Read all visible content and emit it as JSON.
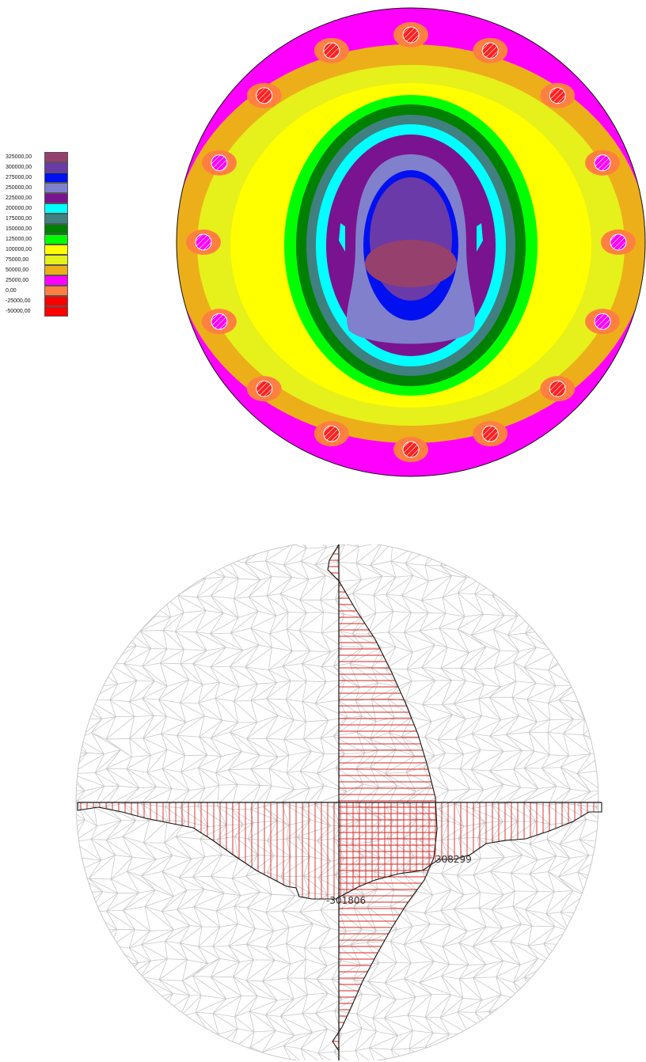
{
  "legend": {
    "levels": [
      {
        "label": "325000,00",
        "color": "#96406e"
      },
      {
        "label": "300000,00",
        "color": "#6a3aa8"
      },
      {
        "label": "275000,00",
        "color": "#0010f0"
      },
      {
        "label": "250000,00",
        "color": "#8080cc"
      },
      {
        "label": "225000,00",
        "color": "#7a1390"
      },
      {
        "label": "200000,00",
        "color": "#00ffff"
      },
      {
        "label": "175000,00",
        "color": "#408080"
      },
      {
        "label": "150000,00",
        "color": "#008000"
      },
      {
        "label": "125000,00",
        "color": "#00ff00"
      },
      {
        "label": "100000,00",
        "color": "#ffff00"
      },
      {
        "label": "75000,00",
        "color": "#e6f01a"
      },
      {
        "label": "50000,00",
        "color": "#ecaf1a"
      },
      {
        "label": "25000,00",
        "color": "#ff00ff"
      },
      {
        "label": "0,00",
        "color": "#ff8040"
      },
      {
        "label": "-25000,00",
        "color": "#ff0000"
      },
      {
        "label": "-50000,00",
        "color": "#ff0000"
      }
    ]
  },
  "diagram": {
    "peak_horizontal_label": "-301806",
    "peak_vertical_label": "308299",
    "fill_color": "#e02020",
    "mesh_color": "#c8c8c8"
  }
}
